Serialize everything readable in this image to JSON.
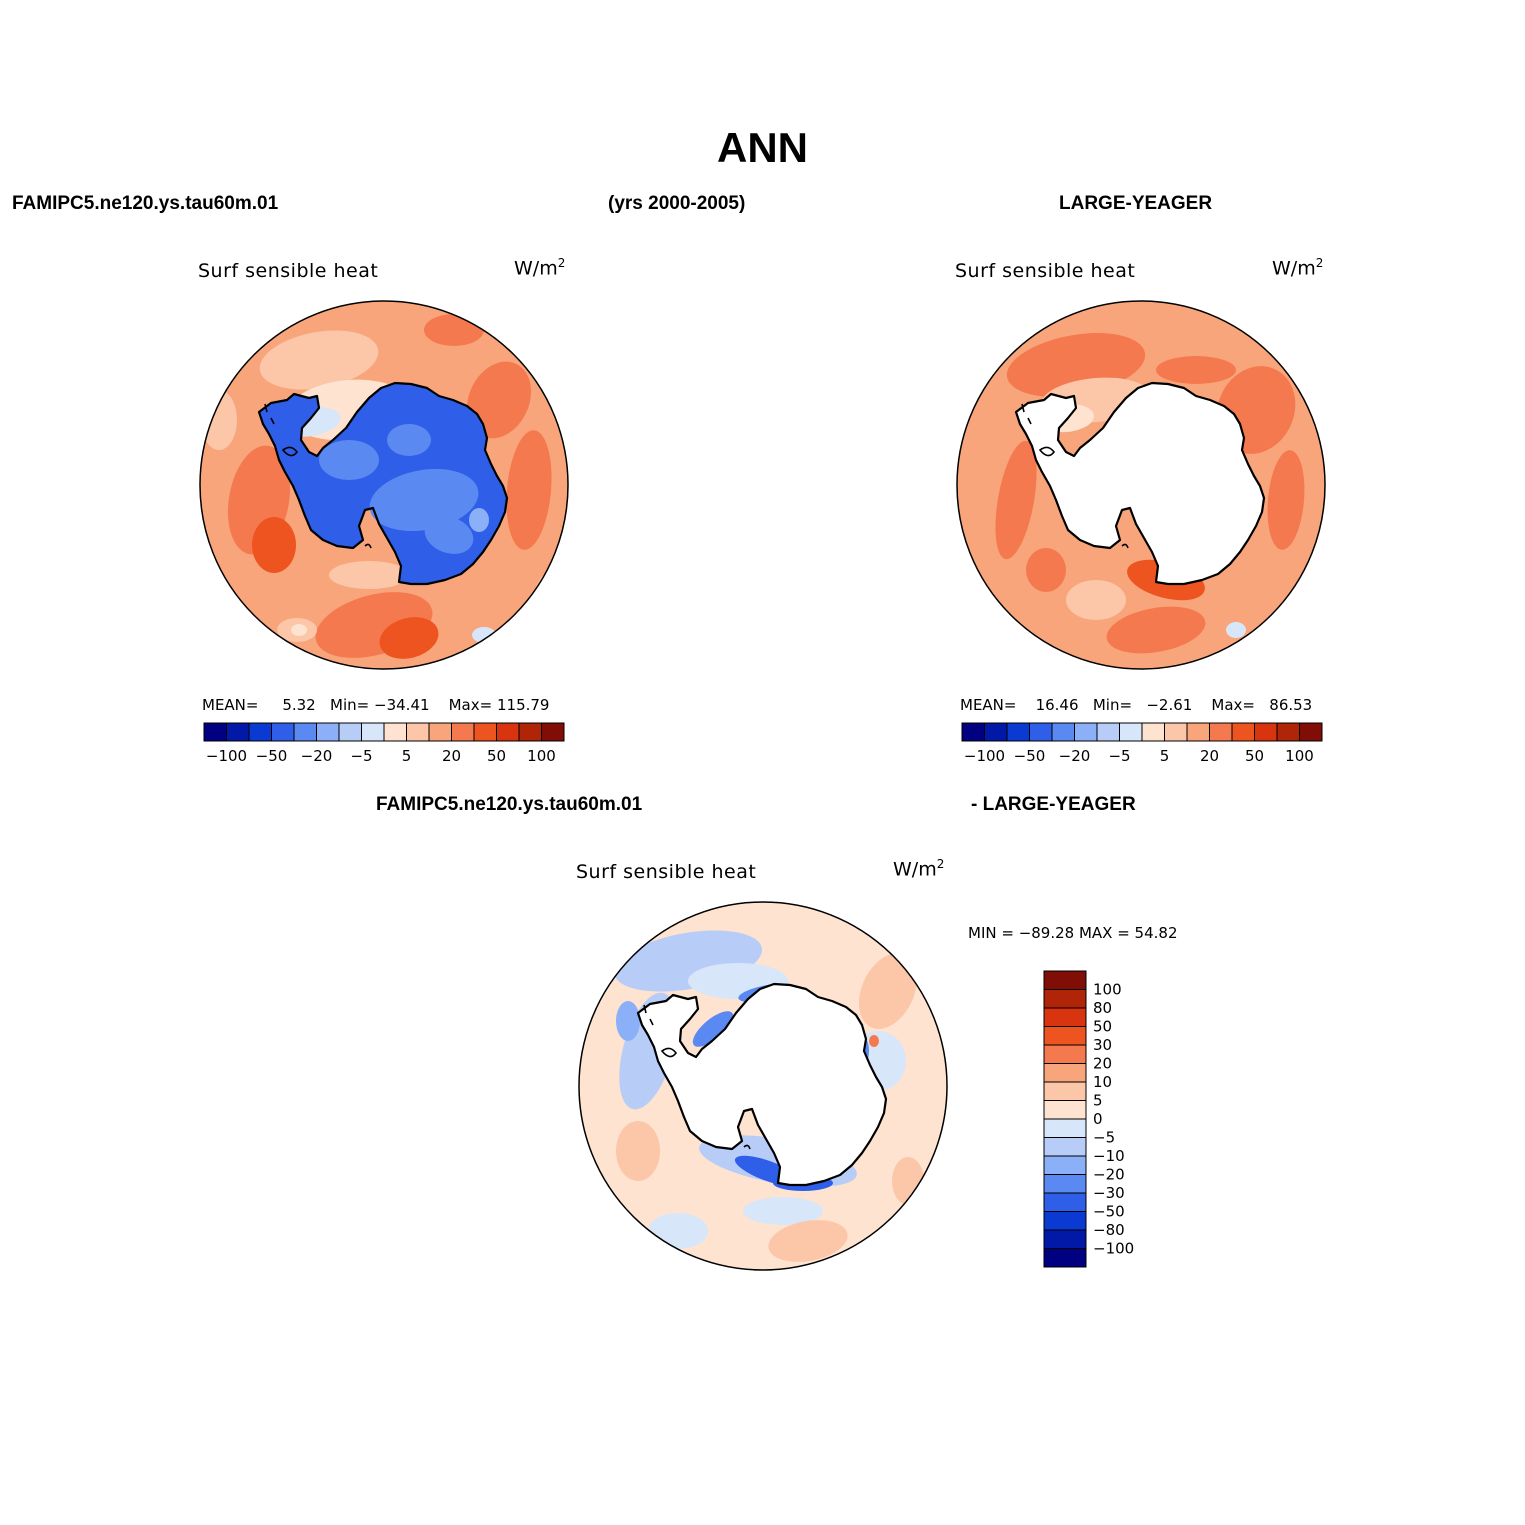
{
  "header": {
    "title": "ANN",
    "left": "FAMIPC5.ne120.ys.tau60m.01",
    "center": "(yrs 2000-2005)",
    "right": "LARGE-YEAGER",
    "diff_left": "FAMIPC5.ne120.ys.tau60m.01",
    "diff_right": "- LARGE-YEAGER"
  },
  "panels": {
    "model": {
      "title": "Surf sensible heat",
      "units": "W/m",
      "units_exp": "2",
      "mean_label": "MEAN=",
      "mean": "5.32",
      "min_label": "Min=",
      "min": "−34.41",
      "max_label": "Max=",
      "max": "115.79"
    },
    "obs": {
      "title": "Surf sensible heat",
      "units": "W/m",
      "units_exp": "2",
      "mean_label": "MEAN=",
      "mean": "16.46",
      "min_label": "Min=",
      "min": "−2.61",
      "max_label": "Max=",
      "max": "86.53"
    },
    "diff": {
      "title": "Surf sensible heat",
      "units": "W/m",
      "units_exp": "2",
      "minmax": "MIN = −89.28  MAX =   54.82"
    }
  },
  "colorbar_horizontal": {
    "colors": [
      "#000080",
      "#0219a8",
      "#0a3ad2",
      "#2f5ee8",
      "#5b89f2",
      "#8bb0f7",
      "#b7cdf8",
      "#d8e6fa",
      "#fde3d0",
      "#fcc6a8",
      "#f9a57c",
      "#f5794e",
      "#ee5420",
      "#d83410",
      "#b02408",
      "#800e06"
    ],
    "ticks": [
      "−100",
      "−50",
      "−20",
      "−5",
      "5",
      "20",
      "50",
      "100"
    ]
  },
  "colorbar_vertical": {
    "colors": [
      "#800e06",
      "#b02408",
      "#d83410",
      "#ee5420",
      "#f5794e",
      "#f9a57c",
      "#fcc6a8",
      "#fde3d0",
      "#d8e6fa",
      "#b7cdf8",
      "#8bb0f7",
      "#5b89f2",
      "#2f5ee8",
      "#0a3ad2",
      "#0219a8",
      "#000080"
    ],
    "labels": [
      "100",
      "80",
      "50",
      "30",
      "20",
      "10",
      "5",
      "0",
      "−5",
      "−10",
      "−20",
      "−30",
      "−50",
      "−80",
      "−100"
    ]
  }
}
